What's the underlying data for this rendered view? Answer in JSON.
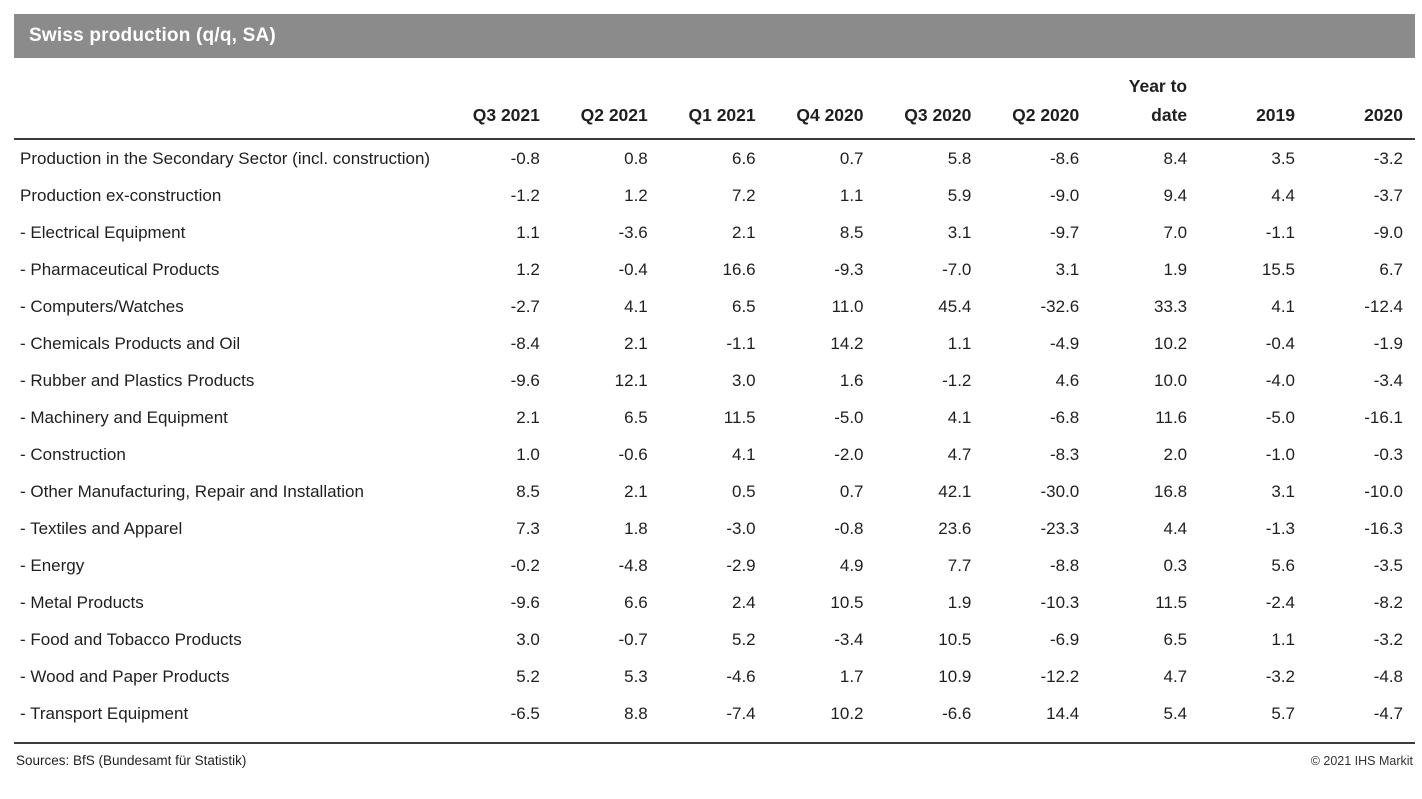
{
  "title_bar": {
    "title": "Swiss production (q/q, SA)",
    "bg_color": "#8b8b8b",
    "text_color": "#ffffff"
  },
  "footer": {
    "sources": "Sources: BfS (Bundesamt für Statistik)",
    "copyright": "© 2021 IHS Markit"
  },
  "chart_data": {
    "type": "table",
    "title": "Swiss production (q/q, SA)",
    "columns": [
      "Q3 2021",
      "Q2 2021",
      "Q1 2021",
      "Q4 2020",
      "Q3 2020",
      "Q2 2020",
      "Year to\ndate",
      "2019",
      "2020"
    ],
    "rows": [
      {
        "label": "Production in the Secondary Sector (incl. construction)",
        "values": [
          -0.8,
          0.8,
          6.6,
          0.7,
          5.8,
          -8.6,
          8.4,
          3.5,
          -3.2
        ]
      },
      {
        "label": "Production ex-construction",
        "values": [
          -1.2,
          1.2,
          7.2,
          1.1,
          5.9,
          -9.0,
          9.4,
          4.4,
          -3.7
        ]
      },
      {
        "label": "- Electrical Equipment",
        "values": [
          1.1,
          -3.6,
          2.1,
          8.5,
          3.1,
          -9.7,
          7.0,
          -1.1,
          -9.0
        ]
      },
      {
        "label": "- Pharmaceutical Products",
        "values": [
          1.2,
          -0.4,
          16.6,
          -9.3,
          -7.0,
          3.1,
          1.9,
          15.5,
          6.7
        ]
      },
      {
        "label": "- Computers/Watches",
        "values": [
          -2.7,
          4.1,
          6.5,
          11.0,
          45.4,
          -32.6,
          33.3,
          4.1,
          -12.4
        ]
      },
      {
        "label": "- Chemicals Products and Oil",
        "values": [
          -8.4,
          2.1,
          -1.1,
          14.2,
          1.1,
          -4.9,
          10.2,
          -0.4,
          -1.9
        ]
      },
      {
        "label": "- Rubber and Plastics Products",
        "values": [
          -9.6,
          12.1,
          3.0,
          1.6,
          -1.2,
          4.6,
          10.0,
          -4.0,
          -3.4
        ]
      },
      {
        "label": "- Machinery and Equipment",
        "values": [
          2.1,
          6.5,
          11.5,
          -5.0,
          4.1,
          -6.8,
          11.6,
          -5.0,
          -16.1
        ]
      },
      {
        "label": "- Construction",
        "values": [
          1.0,
          -0.6,
          4.1,
          -2.0,
          4.7,
          -8.3,
          2.0,
          -1.0,
          -0.3
        ]
      },
      {
        "label": "- Other Manufacturing, Repair and Installation",
        "values": [
          8.5,
          2.1,
          0.5,
          0.7,
          42.1,
          -30.0,
          16.8,
          3.1,
          -10.0
        ]
      },
      {
        "label": "- Textiles and Apparel",
        "values": [
          7.3,
          1.8,
          -3.0,
          -0.8,
          23.6,
          -23.3,
          4.4,
          -1.3,
          -16.3
        ]
      },
      {
        "label": "- Energy",
        "values": [
          -0.2,
          -4.8,
          -2.9,
          4.9,
          7.7,
          -8.8,
          0.3,
          5.6,
          -3.5
        ]
      },
      {
        "label": "- Metal Products",
        "values": [
          -9.6,
          6.6,
          2.4,
          10.5,
          1.9,
          -10.3,
          11.5,
          -2.4,
          -8.2
        ]
      },
      {
        "label": "- Food and Tobacco Products",
        "values": [
          3.0,
          -0.7,
          5.2,
          -3.4,
          10.5,
          -6.9,
          6.5,
          1.1,
          -3.2
        ]
      },
      {
        "label": "- Wood and Paper Products",
        "values": [
          5.2,
          5.3,
          -4.6,
          1.7,
          10.9,
          -12.2,
          4.7,
          -3.2,
          -4.8
        ]
      },
      {
        "label": "- Transport Equipment",
        "values": [
          -6.5,
          8.8,
          -7.4,
          10.2,
          -6.6,
          14.4,
          5.4,
          5.7,
          -4.7
        ]
      }
    ]
  }
}
